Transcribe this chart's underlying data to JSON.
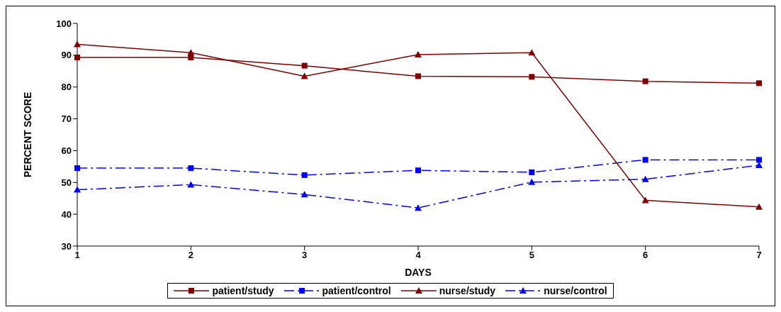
{
  "chart_data": {
    "type": "line",
    "xlabel": "DAYS",
    "ylabel": "PERCENT SCORE",
    "categories": [
      "1",
      "2",
      "3",
      "4",
      "5",
      "6",
      "7"
    ],
    "ylim": [
      30,
      100
    ],
    "yticks": [
      30,
      40,
      50,
      60,
      70,
      80,
      90,
      100
    ],
    "grid": false,
    "legend": "bottom",
    "series": [
      {
        "name": "patient/study",
        "color": "#800000",
        "marker": "square",
        "line_style": "solid",
        "values": [
          89.3,
          89.3,
          86.7,
          83.4,
          83.2,
          81.8,
          81.2
        ]
      },
      {
        "name": "patient/control",
        "color": "#0000ff",
        "marker": "square",
        "line_style": "dashed",
        "values": [
          54.5,
          54.5,
          52.3,
          53.8,
          53.2,
          57.1,
          57.1
        ]
      },
      {
        "name": "nurse/study",
        "color": "#800000",
        "marker": "triangle",
        "line_style": "solid",
        "values": [
          93.4,
          90.8,
          83.4,
          90.2,
          90.8,
          44.4,
          42.3
        ]
      },
      {
        "name": "nurse/control",
        "color": "#0000ff",
        "marker": "triangle",
        "line_style": "dashed",
        "values": [
          47.7,
          49.3,
          46.2,
          42.0,
          50.1,
          51.0,
          55.4
        ]
      }
    ]
  }
}
